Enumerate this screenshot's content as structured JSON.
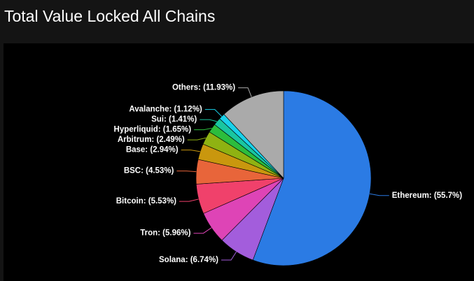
{
  "chart_data": {
    "type": "pie",
    "title": "Total Value Locked All Chains",
    "categories": [
      "Ethereum",
      "Solana",
      "Tron",
      "Bitcoin",
      "BSC",
      "Base",
      "Arbitrum",
      "Hyperliquid",
      "Sui",
      "Avalanche",
      "Others"
    ],
    "values": [
      55.7,
      6.74,
      5.96,
      5.53,
      4.53,
      2.94,
      2.49,
      1.65,
      1.41,
      1.12,
      11.93
    ],
    "value_labels": [
      "Ethereum: (55.7%)",
      "Solana: (6.74%)",
      "Tron: (5.96%)",
      "Bitcoin: (5.53%)",
      "BSC: (4.53%)",
      "Base: (2.94%)",
      "Arbitrum: (2.49%)",
      "Hyperliquid: (1.65%)",
      "Sui: (1.41%)",
      "Avalanche: (1.12%)",
      "Others: (11.93%)"
    ],
    "colors": [
      "#2b7be4",
      "#a35ddc",
      "#de44b6",
      "#f0416b",
      "#e8653a",
      "#c9970e",
      "#8fb212",
      "#2cbd3d",
      "#19c6a0",
      "#19d1ea",
      "#aaaaaa"
    ]
  }
}
